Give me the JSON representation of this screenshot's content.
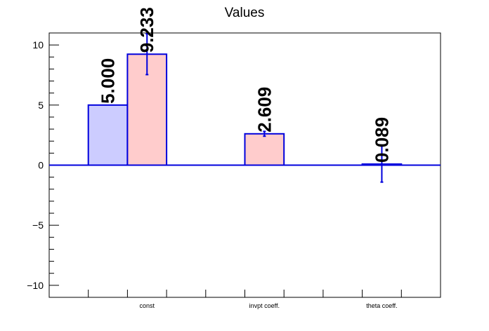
{
  "chart_data": {
    "type": "bar",
    "title": "Values",
    "categories": [
      "const",
      "invpt coeff.",
      "theta coeff."
    ],
    "ylim": [
      -11,
      11
    ],
    "yticks": [
      -10,
      -5,
      0,
      5,
      10
    ],
    "ytick_labels": [
      "−10",
      "−5",
      "0",
      "5",
      "10"
    ],
    "grid": false,
    "legend": "none",
    "series": [
      {
        "values": [
          5.0,
          null,
          null
        ],
        "labels": [
          "5.000",
          "",
          ""
        ],
        "errors": [
          null,
          null,
          null
        ],
        "fill": "#ccccff",
        "stroke": "#0000dd"
      },
      {
        "values": [
          9.233,
          2.609,
          0.089
        ],
        "labels": [
          "9.233",
          "2.609",
          "0.089"
        ],
        "errors": [
          1.7,
          0.2,
          1.5
        ],
        "fill": "#ffcccc",
        "stroke": "#0000dd"
      }
    ]
  }
}
